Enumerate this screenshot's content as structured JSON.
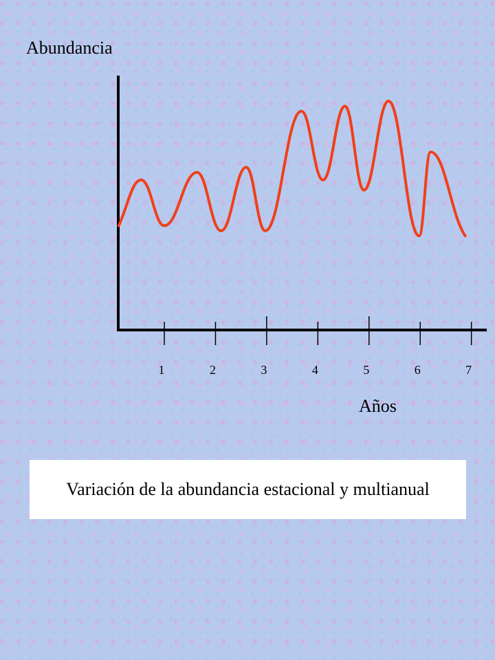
{
  "chart_data": {
    "type": "line",
    "title": "",
    "ylabel": "Abundancia",
    "xlabel": "Años",
    "x_ticks": [
      "1",
      "2",
      "3",
      "4",
      "5",
      "6",
      "7"
    ],
    "x_tick_values": [
      1,
      2,
      3,
      4,
      5,
      6,
      7
    ],
    "xlim": [
      0.1,
      7.3
    ],
    "ylim": [
      0,
      100
    ],
    "grid": false,
    "line_color": "#f0401a",
    "axis_color": "#000000",
    "series": [
      {
        "points": [
          [
            0.11,
            41
          ],
          [
            0.55,
            59
          ],
          [
            1.0,
            41
          ],
          [
            1.64,
            62
          ],
          [
            2.11,
            39
          ],
          [
            2.6,
            64
          ],
          [
            2.97,
            39
          ],
          [
            3.68,
            86
          ],
          [
            4.1,
            59
          ],
          [
            4.53,
            88
          ],
          [
            4.9,
            55
          ],
          [
            5.38,
            90
          ],
          [
            5.98,
            37
          ],
          [
            6.2,
            70
          ],
          [
            6.88,
            37
          ]
        ]
      }
    ]
  },
  "caption": "Variación de la abundancia estacional y multianual"
}
